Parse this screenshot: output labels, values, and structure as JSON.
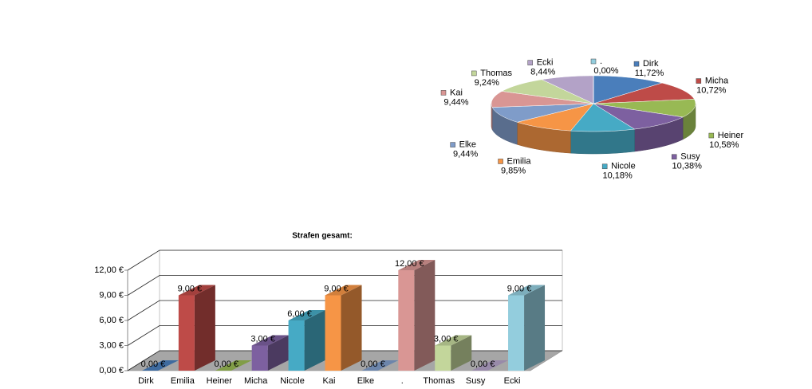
{
  "chart_data": [
    {
      "type": "pie",
      "categories": [
        "Dirk",
        "Micha",
        "Heiner",
        "Susy",
        "Nicole",
        "Emilia",
        "Elke",
        "Kai",
        "Thomas",
        "Ecki",
        "."
      ],
      "values": [
        11.72,
        10.72,
        10.58,
        10.38,
        10.18,
        9.85,
        9.44,
        9.44,
        9.24,
        8.44,
        0.0
      ],
      "value_labels": [
        "11,72%",
        "10,72%",
        "10,58%",
        "10,38%",
        "10,18%",
        "9,85%",
        "9,44%",
        "9,44%",
        "9,24%",
        "8,44%",
        "0,00%"
      ],
      "colors": [
        "#4a7ebb",
        "#be4b48",
        "#98b954",
        "#7d60a0",
        "#46aac5",
        "#f69546",
        "#7f9cc9",
        "#d99694",
        "#c3d69b",
        "#b3a2c7",
        "#93cddd"
      ]
    },
    {
      "type": "bar",
      "title": "Strafen gesamt:",
      "categories": [
        "Dirk",
        "Emilia",
        "Heiner",
        "Micha",
        "Nicole",
        "Kai",
        "Elke",
        ".",
        "Thomas",
        "Susy",
        "Ecki"
      ],
      "values": [
        0,
        9,
        0,
        3,
        6,
        9,
        0,
        12,
        3,
        0,
        9
      ],
      "value_labels": [
        "0,00 €",
        "9,00 €",
        "0,00 €",
        "3,00 €",
        "6,00 €",
        "9,00 €",
        "0,00 €",
        "12,00 €",
        "3,00 €",
        "0,00 €",
        "9,00 €"
      ],
      "colors": [
        "#4a7ebb",
        "#be4b48",
        "#98b954",
        "#7d60a0",
        "#46aac5",
        "#f69546",
        "#7f9cc9",
        "#d99694",
        "#c3d69b",
        "#b3a2c7",
        "#93cddd"
      ],
      "ylim": [
        0,
        12
      ],
      "yticks": [
        {
          "value": 0,
          "label": "0,00 €"
        },
        {
          "value": 3,
          "label": "3,00 €"
        },
        {
          "value": 6,
          "label": "6,00 €"
        },
        {
          "value": 9,
          "label": "9,00 €"
        },
        {
          "value": 12,
          "label": "12,00 €"
        }
      ],
      "grid": true
    }
  ]
}
